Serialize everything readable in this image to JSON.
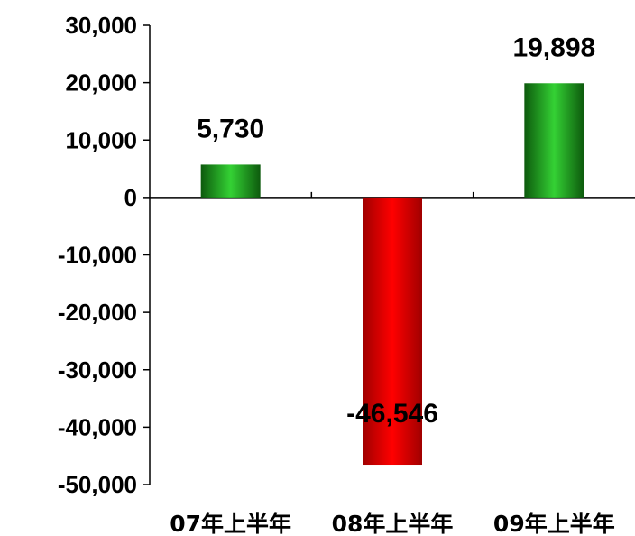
{
  "chart_data": {
    "type": "bar",
    "categories": [
      "07年上半年",
      "08年上半年",
      "09年上半年"
    ],
    "values": [
      5730,
      -46546,
      19898
    ],
    "data_labels": [
      "5,730",
      "-46,546",
      "19,898"
    ],
    "ylim": [
      -50000,
      30000
    ],
    "yticks": [
      30000,
      20000,
      10000,
      0,
      -10000,
      -20000,
      -30000,
      -40000,
      -50000
    ],
    "ytick_labels": [
      "30,000",
      "20,000",
      "10,000",
      "0",
      "-10,000",
      "-20,000",
      "-30,000",
      "-40,000",
      "-50,000"
    ],
    "colors": {
      "positive": "#2db82d",
      "positive_dark": "#0d5a0d",
      "negative": "#ff0000",
      "negative_dark": "#8a0000"
    },
    "grid": false,
    "legend": "none"
  }
}
